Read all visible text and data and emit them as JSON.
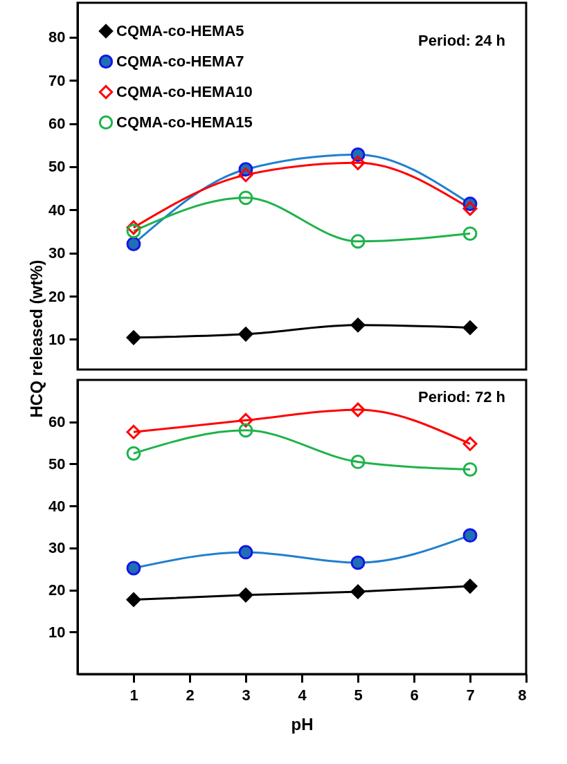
{
  "chart_data": [
    {
      "type": "line",
      "xlim": [
        0,
        8
      ],
      "xticks": [
        1,
        2,
        3,
        4,
        5,
        6,
        7,
        8
      ],
      "ylim": [
        3,
        88
      ],
      "yticks": [
        10,
        20,
        30,
        40,
        50,
        60,
        70,
        80
      ],
      "ylabel": "HCQ released (wt%)",
      "tick_labels": "y",
      "legend": "top left",
      "grid": false,
      "annotations": [
        "Period: 24 h"
      ],
      "x": [
        1,
        3,
        5,
        7
      ],
      "series": [
        {
          "name": "CQMA-co-HEMA5",
          "color": "#000000",
          "marker": "diamond",
          "values": [
            10.4,
            11.2,
            13.3,
            12.7
          ]
        },
        {
          "name": "CQMA-co-HEMA7",
          "color": "#1f7fd0",
          "marker": "circle",
          "values": [
            32.1,
            49.4,
            52.8,
            41.4
          ]
        },
        {
          "name": "CQMA-co-HEMA10",
          "color": "#ff0000",
          "marker": "diamond",
          "values": [
            35.9,
            48.1,
            50.9,
            40.3
          ]
        },
        {
          "name": "CQMA-co-HEMA15",
          "color": "#1db34a",
          "marker": "circle",
          "values": [
            35.1,
            42.8,
            32.7,
            34.5
          ]
        }
      ]
    },
    {
      "type": "line",
      "xlim": [
        0,
        8
      ],
      "xticks": [
        1,
        2,
        3,
        4,
        5,
        6,
        7,
        8
      ],
      "ylim": [
        0,
        70
      ],
      "yticks": [
        10,
        20,
        30,
        40,
        50,
        60
      ],
      "xlabel": "pH",
      "legend": false,
      "grid": false,
      "annotations": [
        "Period: 72 h"
      ],
      "x": [
        1,
        3,
        5,
        7
      ],
      "series": [
        {
          "color": "#000000",
          "marker": "diamond",
          "values": [
            17.7,
            18.8,
            19.6,
            20.9
          ]
        },
        {
          "color": "#1f7fd0",
          "marker": "circle",
          "values": [
            25.2,
            29.0,
            26.5,
            33.0
          ]
        },
        {
          "color": "#ff0000",
          "marker": "diamond",
          "values": [
            57.6,
            60.4,
            62.9,
            54.8
          ]
        },
        {
          "color": "#1db34a",
          "marker": "circle",
          "values": [
            52.5,
            58.0,
            50.5,
            48.7
          ]
        }
      ]
    }
  ]
}
